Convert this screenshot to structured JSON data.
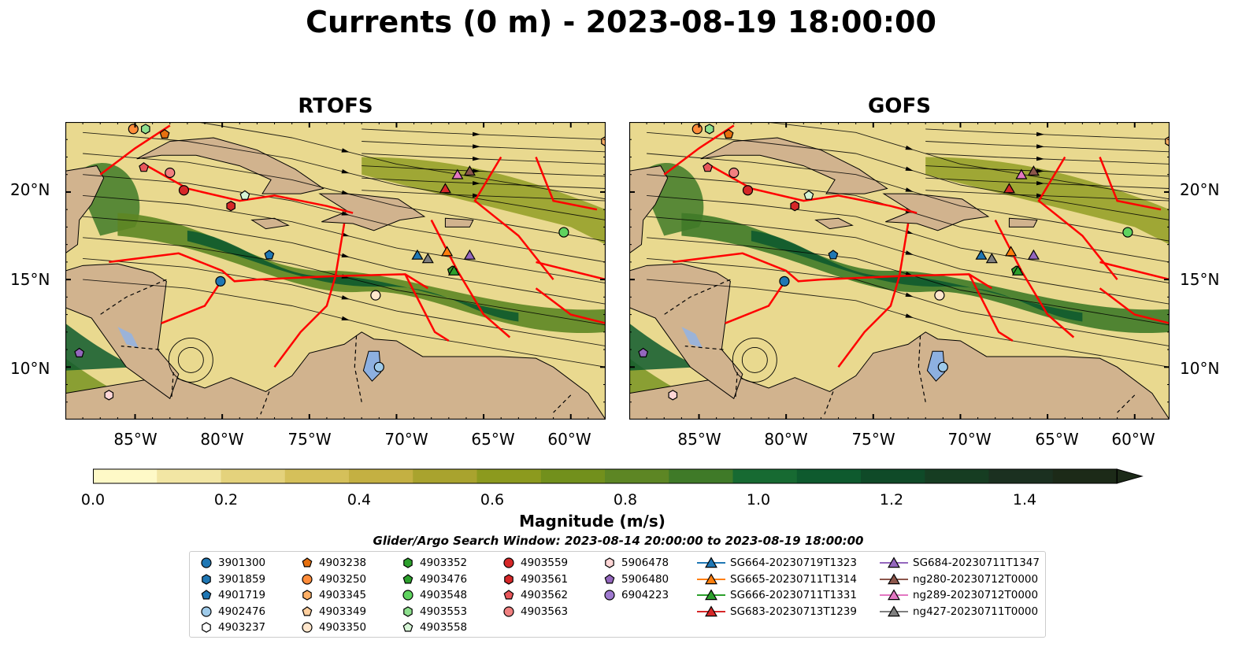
{
  "title": "Currents (0 m) - 2023-08-19 18:00:00",
  "panels": [
    {
      "title": "RTOFS"
    },
    {
      "title": "GOFS"
    }
  ],
  "lat_labels": [
    "20°N",
    "15°N",
    "10°N"
  ],
  "lon_labels": [
    "85°W",
    "80°W",
    "75°W",
    "70°W",
    "65°W",
    "60°W"
  ],
  "colorbar": {
    "label": "Magnitude (m/s)",
    "ticks": [
      "0.0",
      "0.2",
      "0.4",
      "0.6",
      "0.8",
      "1.0",
      "1.2",
      "1.4"
    ],
    "colors": [
      "#fef9c7",
      "#f2e6a4",
      "#e4d27c",
      "#d5c05a",
      "#c4b042",
      "#a9a32e",
      "#8c9a1e",
      "#72901c",
      "#5d8624",
      "#3f7a28",
      "#176a32",
      "#0e5a2e",
      "#0f4a28",
      "#163d22",
      "#1b3020",
      "#1c2a18"
    ]
  },
  "search_window": "Glider/Argo Search Window: 2023-08-14 20:00:00 to 2023-08-19 18:00:00",
  "legend": [
    {
      "label": "3901300",
      "marker": "circle",
      "color": "#1f77b4"
    },
    {
      "label": "3901859",
      "marker": "hexagon",
      "color": "#1f77b4"
    },
    {
      "label": "4901719",
      "marker": "pentagon",
      "color": "#1f77b4"
    },
    {
      "label": "4902476",
      "marker": "circle",
      "color": "#9ecae9"
    },
    {
      "label": "4903237",
      "marker": "hexagon",
      "color": "#ffffff"
    },
    {
      "label": "4903238",
      "marker": "pentagon",
      "color": "#e6700f"
    },
    {
      "label": "4903250",
      "marker": "circle",
      "color": "#ff8c3a"
    },
    {
      "label": "4903345",
      "marker": "hexagon",
      "color": "#ffb066"
    },
    {
      "label": "4903349",
      "marker": "pentagon",
      "color": "#ffcf9e"
    },
    {
      "label": "4903350",
      "marker": "circle",
      "color": "#ffe6cc"
    },
    {
      "label": "4903352",
      "marker": "hexagon",
      "color": "#2ca02c"
    },
    {
      "label": "4903476",
      "marker": "pentagon",
      "color": "#2ca02c"
    },
    {
      "label": "4903548",
      "marker": "circle",
      "color": "#5fd35f"
    },
    {
      "label": "4903553",
      "marker": "hexagon",
      "color": "#8ee08e"
    },
    {
      "label": "4903558",
      "marker": "pentagon",
      "color": "#d6f5d6"
    },
    {
      "label": "4903559",
      "marker": "circle",
      "color": "#d62728"
    },
    {
      "label": "4903561",
      "marker": "hexagon",
      "color": "#d62728"
    },
    {
      "label": "4903562",
      "marker": "pentagon",
      "color": "#e8565a"
    },
    {
      "label": "4903563",
      "marker": "circle",
      "color": "#f08080"
    },
    {
      "label": "5906478",
      "marker": "hexagon",
      "color": "#ffd6d6"
    },
    {
      "label": "5906480",
      "marker": "pentagon",
      "color": "#9467bd"
    },
    {
      "label": "6904223",
      "marker": "circle",
      "color": "#9f7ad0"
    },
    {
      "label": "SG664-20230719T1323",
      "marker": "triangle",
      "color": "#1f77b4"
    },
    {
      "label": "SG665-20230711T1314",
      "marker": "triangle",
      "color": "#ff7f0e"
    },
    {
      "label": "SG666-20230711T1331",
      "marker": "triangle",
      "color": "#2ca02c"
    },
    {
      "label": "SG683-20230713T1239",
      "marker": "triangle",
      "color": "#d62728"
    },
    {
      "label": "SG684-20230711T1347",
      "marker": "triangle",
      "color": "#9467bd"
    },
    {
      "label": "ng280-20230712T0000",
      "marker": "triangle",
      "color": "#8c564b"
    },
    {
      "label": "ng289-20230712T0000",
      "marker": "triangle",
      "color": "#e377c2"
    },
    {
      "label": "ng427-20230711T0000",
      "marker": "triangle",
      "color": "#7f7f7f"
    }
  ],
  "chart_data": {
    "type": "map",
    "title": "Currents (0 m) - 2023-08-19 18:00:00",
    "panel_titles": [
      "RTOFS",
      "GOFS"
    ],
    "lon_range": [
      -89,
      -58
    ],
    "lat_range": [
      7,
      24
    ],
    "colorbar_range": [
      0.0,
      1.6
    ],
    "colorbar_label": "Magnitude (m/s)",
    "markers": [
      {
        "id": "3901300",
        "lon": -80.1,
        "lat": 14.9
      },
      {
        "id": "4901719",
        "lon": -77.3,
        "lat": 16.4
      },
      {
        "id": "4902476",
        "lon": -71.0,
        "lat": 10.0
      },
      {
        "id": "4903238",
        "lon": -83.3,
        "lat": 23.3
      },
      {
        "id": "4903250",
        "lon": -85.1,
        "lat": 23.6
      },
      {
        "id": "4903345",
        "lon": -58.0,
        "lat": 22.9
      },
      {
        "id": "4903350",
        "lon": -71.2,
        "lat": 14.1
      },
      {
        "id": "4903352",
        "lon": -60.4,
        "lat": 17.7
      },
      {
        "id": "4903476",
        "lon": -66.8,
        "lat": 15.5
      },
      {
        "id": "4903548",
        "lon": -60.4,
        "lat": 17.7
      },
      {
        "id": "4903553",
        "lon": -84.4,
        "lat": 23.6
      },
      {
        "id": "4903558",
        "lon": -78.7,
        "lat": 19.8
      },
      {
        "id": "4903559",
        "lon": -82.2,
        "lat": 20.1
      },
      {
        "id": "4903561",
        "lon": -79.5,
        "lat": 19.2
      },
      {
        "id": "4903562",
        "lon": -84.5,
        "lat": 21.4
      },
      {
        "id": "4903563",
        "lon": -83.0,
        "lat": 21.1
      },
      {
        "id": "5906478",
        "lon": -86.5,
        "lat": 8.4
      },
      {
        "id": "5906480",
        "lon": -88.2,
        "lat": 10.8
      },
      {
        "id": "SG664-20230719T1323",
        "lon": -68.8,
        "lat": 16.4
      },
      {
        "id": "SG665-20230711T1314",
        "lon": -67.1,
        "lat": 16.6
      },
      {
        "id": "SG666-20230711T1331",
        "lon": -66.7,
        "lat": 15.5
      },
      {
        "id": "SG683-20230713T1239",
        "lon": -67.2,
        "lat": 20.2
      },
      {
        "id": "SG684-20230711T1347",
        "lon": -65.8,
        "lat": 16.4
      },
      {
        "id": "ng280-20230712T0000",
        "lon": -65.8,
        "lat": 21.2
      },
      {
        "id": "ng289-20230712T0000",
        "lon": -66.5,
        "lat": 21.0
      },
      {
        "id": "ng427-20230711T0000",
        "lon": -68.2,
        "lat": 16.2
      }
    ]
  }
}
